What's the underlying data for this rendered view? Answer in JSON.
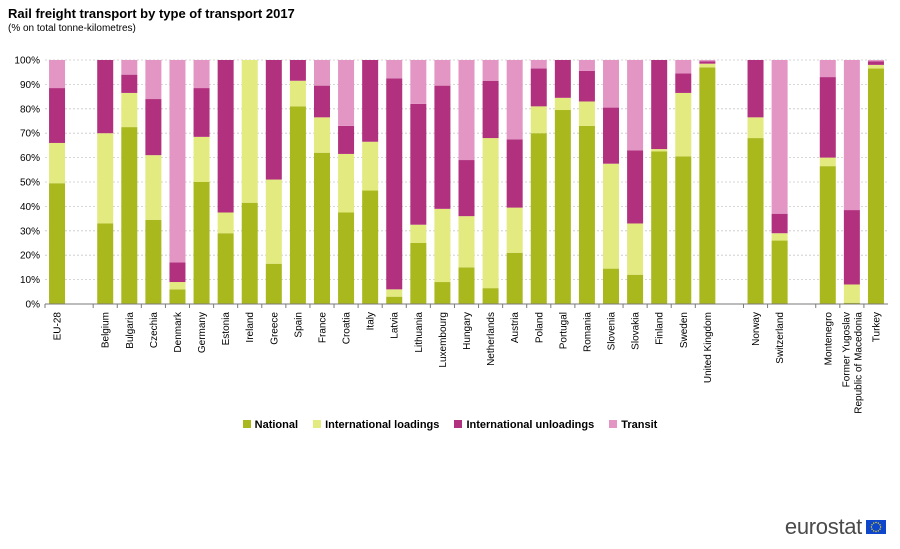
{
  "header": {
    "title": "Rail freight transport by type of transport  2017",
    "subtitle": "(% on total tonne-kilometres)"
  },
  "logo": {
    "text": "eurostat",
    "icon": "eu-flag-icon"
  },
  "colors": {
    "National": "#a9b81c",
    "International loadings": "#e3ea7f",
    "International unloadings": "#b2317f",
    "Transit": "#e396c4"
  },
  "chart_data": {
    "type": "bar",
    "stacked": true,
    "title": "Rail freight transport by type of transport  2017",
    "subtitle": "(% on total tonne-kilometres)",
    "ylim": [
      0,
      100
    ],
    "yticks": [
      "0%",
      "10%",
      "20%",
      "30%",
      "40%",
      "50%",
      "60%",
      "70%",
      "80%",
      "90%",
      "100%"
    ],
    "grid": true,
    "legend_position": "bottom",
    "categories": [
      "EU-28",
      "",
      "Belgium",
      "Bulgaria",
      "Czechia",
      "Denmark",
      "Germany",
      "Estonia",
      "Ireland",
      "Greece",
      "Spain",
      "France",
      "Croatia",
      "Italy",
      "Latvia",
      "Lithuania",
      "Luxembourg",
      "Hungary",
      "Netherlands",
      "Austria",
      "Poland",
      "Portugal",
      "Romania",
      "Slovenia",
      "Slovakia",
      "Finland",
      "Sweden",
      "United Kingdom",
      "",
      "Norway",
      "Switzerland",
      "",
      "Montenegro",
      "Former Yugoslav Republic of Macedonia",
      "Turkey"
    ],
    "series": [
      {
        "name": "National",
        "values": [
          49.5,
          null,
          33,
          72.5,
          34.5,
          6,
          50,
          29,
          41.5,
          16.5,
          81,
          62,
          37.5,
          46.5,
          3,
          25,
          9,
          15,
          6.5,
          21,
          70,
          79.5,
          73,
          14.5,
          12,
          62.5,
          60.5,
          97,
          null,
          68,
          26,
          null,
          56.5,
          0.5,
          96.5
        ]
      },
      {
        "name": "International loadings",
        "values": [
          16.5,
          null,
          37,
          14,
          26.5,
          3,
          18.5,
          8.5,
          58.5,
          34.5,
          10.5,
          14.5,
          24,
          20,
          3,
          7.5,
          30,
          21,
          61.5,
          18.5,
          11,
          5,
          10,
          43,
          21,
          1,
          26,
          1.5,
          null,
          8.5,
          3,
          null,
          3.5,
          7.5,
          1.5
        ]
      },
      {
        "name": "International unloadings",
        "values": [
          22.5,
          null,
          30,
          7.5,
          23,
          8,
          20,
          62.5,
          0,
          49,
          8.5,
          13,
          11.5,
          33.5,
          86.5,
          49.5,
          50.5,
          23,
          23.5,
          28,
          15.5,
          15.5,
          12.5,
          23,
          30,
          36.5,
          8,
          1,
          null,
          23.5,
          8,
          null,
          33,
          30.5,
          1.5
        ]
      },
      {
        "name": "Transit",
        "values": [
          11.5,
          null,
          0,
          6,
          16,
          83,
          11.5,
          0,
          0,
          0,
          0,
          10.5,
          27,
          0,
          7.5,
          18,
          10.5,
          41,
          8.5,
          32.5,
          3.5,
          0,
          4.5,
          19.5,
          37,
          0,
          5.5,
          0.5,
          null,
          0,
          63,
          null,
          7,
          61.5,
          0.5
        ]
      }
    ]
  }
}
